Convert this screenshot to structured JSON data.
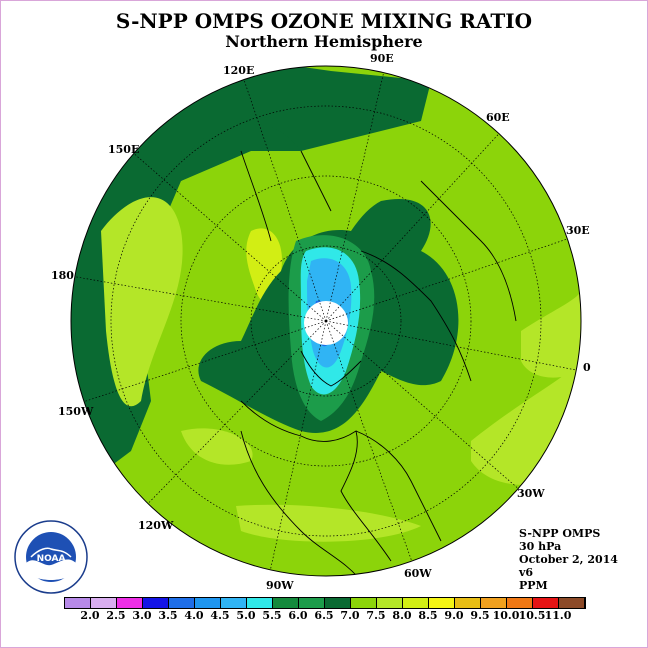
{
  "title": "S-NPP OMPS OZONE MIXING RATIO",
  "subtitle": "Northern Hemisphere",
  "longitude_labels": [
    "90E",
    "60E",
    "30E",
    "0",
    "30W",
    "60W",
    "90W",
    "120W",
    "150W",
    "180",
    "150E",
    "120E"
  ],
  "info": {
    "instrument": "S-NPP OMPS",
    "level": "30 hPa",
    "date": "October 2, 2014",
    "version": "v6",
    "units": "PPM"
  },
  "colorbar": {
    "colors": [
      "#b78ae8",
      "#d9aef0",
      "#ee2ee6",
      "#1414e6",
      "#1e6ee8",
      "#1e96f0",
      "#30b4f4",
      "#30e8e8",
      "#148a3c",
      "#1c9c4a",
      "#0a6a32",
      "#8cd40a",
      "#b4e628",
      "#d2ee14",
      "#f5f514",
      "#e8be14",
      "#f0a01e",
      "#f07814",
      "#e61414",
      "#8c4a28"
    ],
    "labels": [
      "2.0",
      "2.5",
      "3.0",
      "3.5",
      "4.0",
      "4.5",
      "5.0",
      "5.5",
      "6.0",
      "6.5",
      "7.0",
      "7.5",
      "8.0",
      "8.5",
      "9.0",
      "9.5",
      "10.0",
      "10.5",
      "11.0"
    ]
  },
  "logo_text": "NOAA"
}
